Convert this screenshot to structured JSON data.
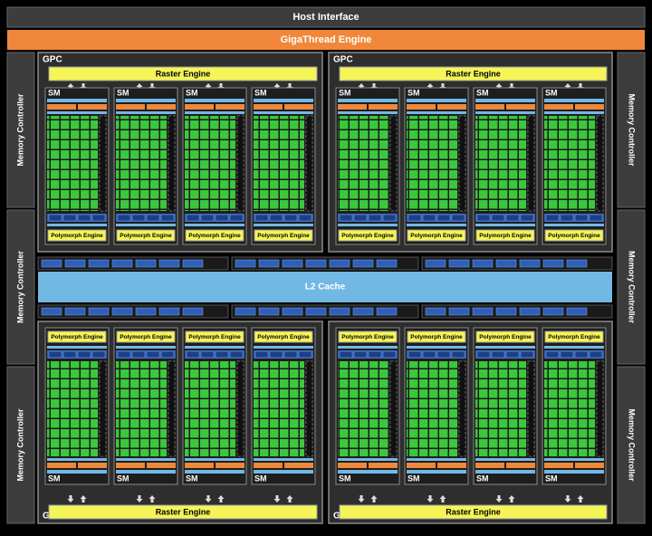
{
  "host_interface": "Host Interface",
  "gigathread_engine": "GigaThread Engine",
  "l2_cache": "L2 Cache",
  "memory_controllers": [
    "Memory Controller",
    "Memory Controller",
    "Memory Controller",
    "Memory Controller",
    "Memory Controller",
    "Memory Controller"
  ],
  "gpcs": [
    {
      "label": "GPC",
      "raster_engine": "Raster Engine",
      "sms": [
        {
          "label": "SM",
          "polymorph_engine": "Polymorph Engine"
        },
        {
          "label": "SM",
          "polymorph_engine": "Polymorph Engine"
        },
        {
          "label": "SM",
          "polymorph_engine": "Polymorph Engine"
        },
        {
          "label": "SM",
          "polymorph_engine": "Polymorph Engine"
        }
      ]
    },
    {
      "label": "GPC",
      "raster_engine": "Raster Engine",
      "sms": [
        {
          "label": "SM",
          "polymorph_engine": "Polymorph Engine"
        },
        {
          "label": "SM",
          "polymorph_engine": "Polymorph Engine"
        },
        {
          "label": "SM",
          "polymorph_engine": "Polymorph Engine"
        },
        {
          "label": "SM",
          "polymorph_engine": "Polymorph Engine"
        }
      ]
    },
    {
      "label": "GPC",
      "raster_engine": "Raster Engine",
      "sms": [
        {
          "label": "SM",
          "polymorph_engine": "Polymorph Engine"
        },
        {
          "label": "SM",
          "polymorph_engine": "Polymorph Engine"
        },
        {
          "label": "SM",
          "polymorph_engine": "Polymorph Engine"
        },
        {
          "label": "SM",
          "polymorph_engine": "Polymorph Engine"
        }
      ]
    },
    {
      "label": "GPC",
      "raster_engine": "Raster Engine",
      "sms": [
        {
          "label": "SM",
          "polymorph_engine": "Polymorph Engine"
        },
        {
          "label": "SM",
          "polymorph_engine": "Polymorph Engine"
        },
        {
          "label": "SM",
          "polymorph_engine": "Polymorph Engine"
        },
        {
          "label": "SM",
          "polymorph_engine": "Polymorph Engine"
        }
      ]
    }
  ]
}
